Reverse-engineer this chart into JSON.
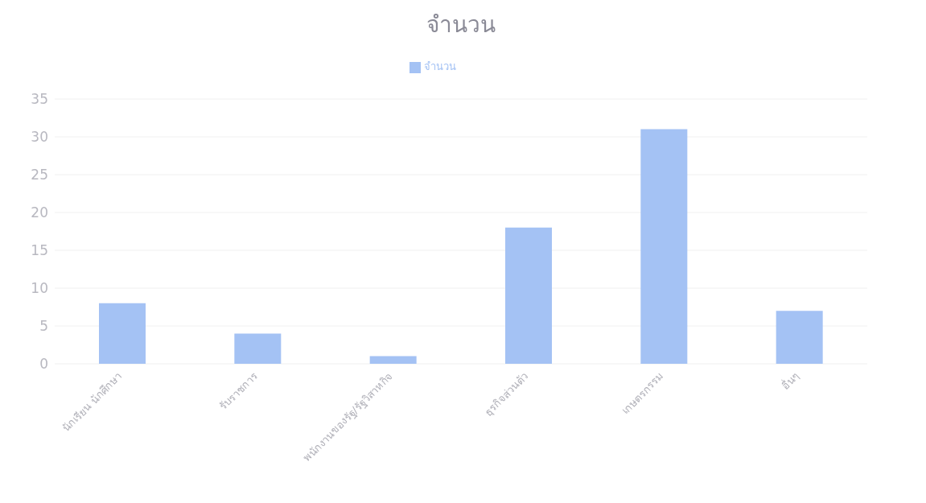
{
  "chart_data": {
    "type": "bar",
    "title": "จำนวน",
    "categories": [
      "นักเรียน นักศึกษา",
      "รับราชการ",
      "พนักงานของรัฐ/รัฐวิสาหกิจ",
      "ธุรกิจส่วนตัว",
      "เกษตรกรรม",
      "อื่นๆ"
    ],
    "series": [
      {
        "name": "จำนวน",
        "color": "#a4c2f4",
        "values": [
          8,
          4,
          1,
          18,
          31,
          7
        ]
      }
    ],
    "ylim": [
      0,
      35
    ],
    "yticks": [
      0,
      5,
      10,
      15,
      20,
      25,
      30,
      35
    ],
    "grid": "y",
    "legend": "top"
  }
}
